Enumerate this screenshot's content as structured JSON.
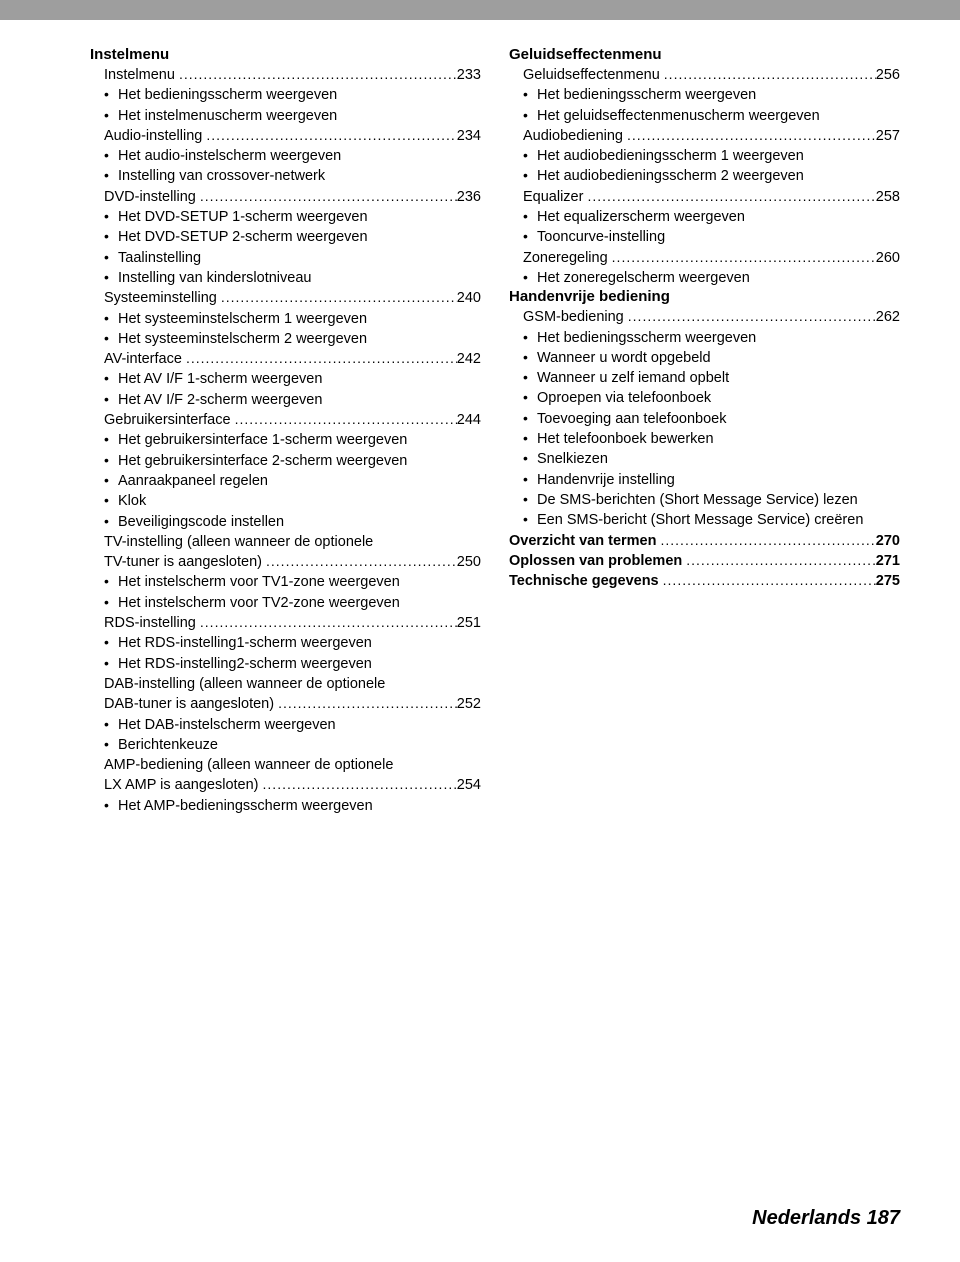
{
  "footer": "Nederlands 187",
  "dots": "........................................................................................................................",
  "columns": {
    "left": [
      {
        "type": "section",
        "text": "Instelmenu"
      },
      {
        "type": "toc",
        "label": "Instelmenu",
        "page": "233"
      },
      {
        "type": "bullet",
        "text": "Het bedieningsscherm weergeven"
      },
      {
        "type": "bullet",
        "text": "Het instelmenuscherm weergeven"
      },
      {
        "type": "toc",
        "label": "Audio-instelling",
        "page": "234"
      },
      {
        "type": "bullet",
        "text": "Het audio-instelscherm weergeven"
      },
      {
        "type": "bullet",
        "text": "Instelling van crossover-netwerk"
      },
      {
        "type": "toc",
        "label": "DVD-instelling",
        "page": "236"
      },
      {
        "type": "bullet",
        "text": "Het DVD-SETUP 1-scherm weergeven"
      },
      {
        "type": "bullet",
        "text": "Het DVD-SETUP 2-scherm weergeven"
      },
      {
        "type": "bullet",
        "text": "Taalinstelling"
      },
      {
        "type": "bullet",
        "text": "Instelling van kinderslotniveau"
      },
      {
        "type": "toc",
        "label": "Systeeminstelling",
        "page": "240"
      },
      {
        "type": "bullet",
        "text": "Het systeeminstelscherm 1 weergeven"
      },
      {
        "type": "bullet",
        "text": "Het systeeminstelscherm 2 weergeven"
      },
      {
        "type": "toc",
        "label": "AV-interface",
        "page": "242"
      },
      {
        "type": "bullet",
        "text": "Het AV I/F 1-scherm weergeven"
      },
      {
        "type": "bullet",
        "text": "Het AV I/F 2-scherm weergeven"
      },
      {
        "type": "toc",
        "label": "Gebruikersinterface",
        "page": "244"
      },
      {
        "type": "bullet",
        "text": "Het gebruikersinterface 1-scherm weergeven"
      },
      {
        "type": "bullet",
        "text": "Het gebruikersinterface 2-scherm weergeven"
      },
      {
        "type": "bullet",
        "text": "Aanraakpaneel regelen"
      },
      {
        "type": "bullet",
        "text": "Klok"
      },
      {
        "type": "bullet",
        "text": "Beveiligingscode instellen"
      },
      {
        "type": "sub",
        "text": "TV-instelling (alleen wanneer de optionele"
      },
      {
        "type": "toc",
        "label": "TV-tuner is aangesloten)",
        "page": "250"
      },
      {
        "type": "bullet",
        "text": "Het instelscherm voor TV1-zone weergeven"
      },
      {
        "type": "bullet",
        "text": "Het instelscherm voor TV2-zone weergeven"
      },
      {
        "type": "toc",
        "label": "RDS-instelling",
        "page": "251"
      },
      {
        "type": "bullet",
        "text": "Het RDS-instelling1-scherm weergeven"
      },
      {
        "type": "bullet",
        "text": "Het RDS-instelling2-scherm weergeven"
      },
      {
        "type": "sub",
        "text": "DAB-instelling (alleen wanneer de optionele"
      },
      {
        "type": "toc",
        "label": "DAB-tuner is aangesloten)",
        "page": "252"
      },
      {
        "type": "bullet",
        "text": "Het DAB-instelscherm weergeven"
      },
      {
        "type": "bullet",
        "text": "Berichtenkeuze"
      },
      {
        "type": "sub",
        "text": "AMP-bediening (alleen wanneer de optionele"
      },
      {
        "type": "toc",
        "label": "LX AMP is aangesloten)",
        "page": "254"
      },
      {
        "type": "bullet",
        "text": "Het AMP-bedieningsscherm weergeven"
      }
    ],
    "right": [
      {
        "type": "section",
        "text": "Geluidseffectenmenu"
      },
      {
        "type": "toc",
        "label": "Geluidseffectenmenu",
        "page": "256"
      },
      {
        "type": "bullet",
        "text": "Het bedieningsscherm weergeven"
      },
      {
        "type": "bullet",
        "text": "Het geluidseffectenmenuscherm weergeven"
      },
      {
        "type": "toc",
        "label": "Audiobediening",
        "page": "257"
      },
      {
        "type": "bullet",
        "text": "Het audiobedieningsscherm 1 weergeven"
      },
      {
        "type": "bullet",
        "text": "Het audiobedieningsscherm 2 weergeven"
      },
      {
        "type": "toc",
        "label": "Equalizer",
        "page": "258"
      },
      {
        "type": "bullet",
        "text": "Het equalizerscherm weergeven"
      },
      {
        "type": "bullet",
        "text": "Tooncurve-instelling"
      },
      {
        "type": "toc",
        "label": "Zoneregeling",
        "page": "260"
      },
      {
        "type": "bullet",
        "text": "Het zoneregelscherm weergeven"
      },
      {
        "type": "section",
        "text": "Handenvrije bediening"
      },
      {
        "type": "toc",
        "label": "GSM-bediening",
        "page": "262"
      },
      {
        "type": "bullet",
        "text": "Het bedieningsscherm weergeven"
      },
      {
        "type": "bullet",
        "text": "Wanneer u wordt opgebeld"
      },
      {
        "type": "bullet",
        "text": "Wanneer u zelf iemand opbelt"
      },
      {
        "type": "bullet",
        "text": "Oproepen via telefoonboek"
      },
      {
        "type": "bullet",
        "text": "Toevoeging aan telefoonboek"
      },
      {
        "type": "bullet",
        "text": "Het telefoonboek bewerken"
      },
      {
        "type": "bullet",
        "text": "Snelkiezen"
      },
      {
        "type": "bullet",
        "text": "Handenvrije instelling"
      },
      {
        "type": "bullet",
        "text": "De SMS-berichten (Short Message Service) lezen"
      },
      {
        "type": "bullet",
        "text": "Een SMS-bericht (Short Message Service) creëren"
      },
      {
        "type": "toc",
        "bold": true,
        "label": "Overzicht van termen",
        "page": "270"
      },
      {
        "type": "toc",
        "bold": true,
        "label": "Oplossen van problemen",
        "page": "271"
      },
      {
        "type": "toc",
        "bold": true,
        "label": "Technische gegevens",
        "page": "275"
      }
    ]
  }
}
